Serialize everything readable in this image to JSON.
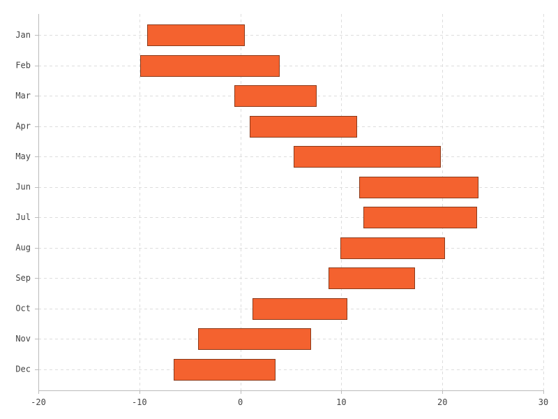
{
  "chart_data": {
    "type": "bar",
    "orientation": "horizontal",
    "style": "floating-range",
    "title": "",
    "xlabel": "",
    "ylabel": "",
    "categories": [
      "Jan",
      "Feb",
      "Mar",
      "Apr",
      "May",
      "Jun",
      "Jul",
      "Aug",
      "Sep",
      "Oct",
      "Nov",
      "Dec"
    ],
    "series": [
      {
        "low": [
          -9.2,
          -9.9,
          -0.6,
          0.9,
          5.3,
          11.8,
          12.2,
          9.9,
          8.7,
          1.2,
          -4.2,
          -6.6
        ],
        "high": [
          0.4,
          3.8,
          7.5,
          11.5,
          19.8,
          23.5,
          23.4,
          20.2,
          17.2,
          10.5,
          6.9,
          3.4
        ],
        "color": "#f4622f"
      }
    ],
    "xlim": [
      -20,
      30
    ],
    "xticks": [
      -20,
      -10,
      0,
      10,
      20,
      30
    ],
    "xtick_labels": [
      "-20",
      "-10",
      "0",
      "10",
      "20",
      "30"
    ],
    "grid": true,
    "legend": "none"
  }
}
